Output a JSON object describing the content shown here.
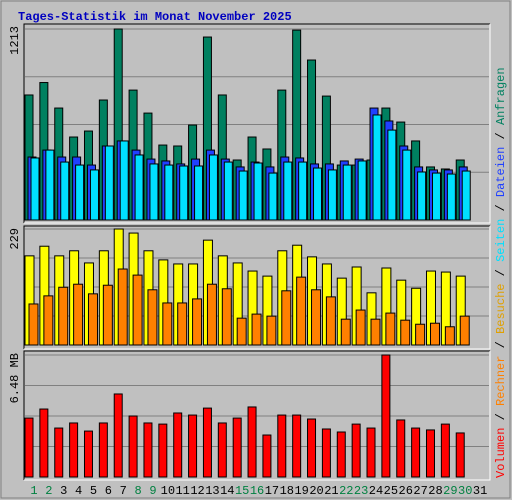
{
  "title": "Tages-Statistik im Monat November 2025",
  "legend_separator": " / ",
  "categories": [
    "1",
    "2",
    "3",
    "4",
    "5",
    "6",
    "7",
    "8",
    "9",
    "10",
    "11",
    "12",
    "13",
    "14",
    "15",
    "16",
    "17",
    "18",
    "19",
    "20",
    "21",
    "22",
    "23",
    "24",
    "25",
    "26",
    "27",
    "28",
    "29",
    "30",
    "31"
  ],
  "category_colors": [
    "#008040",
    "#008040",
    "#000000",
    "#000000",
    "#000000",
    "#000000",
    "#000000",
    "#008040",
    "#008040",
    "#000000",
    "#000000",
    "#000000",
    "#000000",
    "#000000",
    "#008040",
    "#008040",
    "#000000",
    "#000000",
    "#000000",
    "#000000",
    "#000000",
    "#008040",
    "#008040",
    "#000000",
    "#000000",
    "#000000",
    "#000000",
    "#000000",
    "#008040",
    "#008040",
    "#000000"
  ],
  "chart_data": [
    {
      "type": "bar",
      "ylim": [
        0,
        1213
      ],
      "yticks": [
        1213
      ],
      "series": [
        {
          "name": "Anfragen",
          "color": "#008060",
          "values": [
            794,
            873,
            711,
            527,
            565,
            762,
            1213,
            825,
            679,
            476,
            470,
            603,
            1162,
            794,
            381,
            527,
            451,
            825,
            1206,
            1016,
            787,
            349,
            349,
            381,
            711,
            622,
            502,
            337,
            324,
            381,
            null
          ]
        },
        {
          "name": "Dateien",
          "color": "#2040ff",
          "values": [
            400,
            444,
            400,
            400,
            349,
            470,
            502,
            444,
            387,
            375,
            356,
            387,
            444,
            387,
            337,
            368,
            337,
            400,
            394,
            356,
            356,
            375,
            387,
            711,
            629,
            470,
            337,
            318,
            318,
            337,
            null
          ]
        },
        {
          "name": "Seiten",
          "color": "#00e0ff",
          "values": [
            394,
            444,
            368,
            349,
            318,
            470,
            502,
            413,
            356,
            349,
            343,
            343,
            413,
            368,
            311,
            362,
            298,
            368,
            368,
            330,
            318,
            349,
            375,
            667,
            571,
            444,
            305,
            298,
            292,
            311,
            null
          ]
        }
      ]
    },
    {
      "type": "bar",
      "ylim": [
        0,
        229
      ],
      "yticks": [
        229
      ],
      "series": [
        {
          "name": "Besuche",
          "color": "#ffff00",
          "values": [
            176,
            195,
            176,
            186,
            162,
            186,
            229,
            221,
            186,
            168,
            160,
            160,
            207,
            176,
            162,
            146,
            136,
            186,
            197,
            174,
            160,
            132,
            154,
            103,
            152,
            128,
            112,
            146,
            144,
            136,
            null
          ]
        },
        {
          "name": "Rechner",
          "color": "#ff8000",
          "values": [
            81,
            97,
            114,
            120,
            101,
            118,
            150,
            138,
            109,
            83,
            83,
            91,
            120,
            111,
            53,
            61,
            57,
            107,
            134,
            109,
            95,
            51,
            69,
            51,
            63,
            49,
            41,
            43,
            36,
            57,
            null
          ]
        }
      ]
    },
    {
      "type": "bar",
      "ylim": [
        0,
        6.48
      ],
      "yticks": [
        {
          "value": 6.48,
          "label": "6.48 MB"
        }
      ],
      "series": [
        {
          "name": "Volumen",
          "color": "#ff0000",
          "values": [
            3.13,
            3.61,
            2.6,
            2.87,
            2.44,
            2.87,
            4.41,
            3.24,
            2.87,
            2.81,
            3.4,
            3.29,
            3.66,
            2.87,
            3.13,
            3.72,
            2.23,
            3.29,
            3.29,
            3.08,
            2.55,
            2.39,
            2.81,
            2.6,
            6.48,
            3.03,
            2.6,
            2.5,
            2.81,
            2.34,
            null
          ]
        }
      ]
    }
  ]
}
